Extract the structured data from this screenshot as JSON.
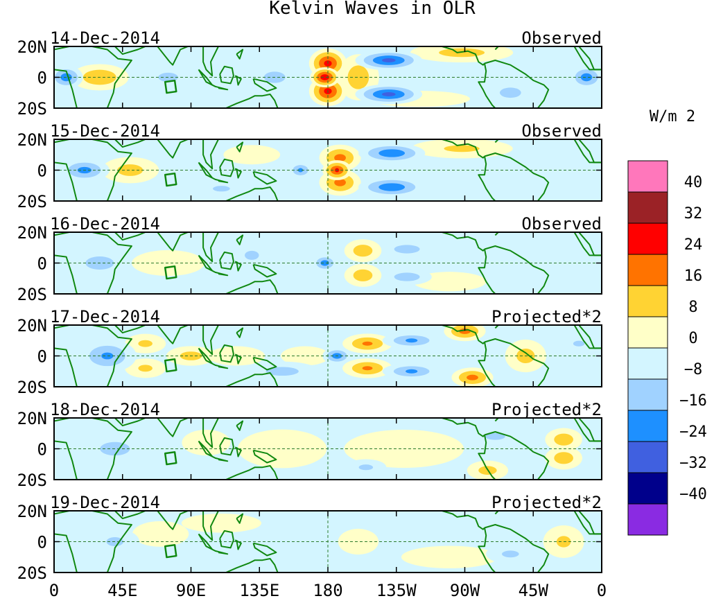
{
  "chart_data": {
    "type": "heatmap",
    "title": "Kelvin Waves in OLR",
    "units": "W/m 2",
    "x_ticks": [
      "0",
      "45E",
      "90E",
      "135E",
      "180",
      "135W",
      "90W",
      "45W",
      "0"
    ],
    "y_ticks": [
      "20N",
      "0",
      "20S"
    ],
    "panels": [
      {
        "date": "14-Dec-2014",
        "kind": "Observed"
      },
      {
        "date": "15-Dec-2014",
        "kind": "Observed"
      },
      {
        "date": "16-Dec-2014",
        "kind": "Observed"
      },
      {
        "date": "17-Dec-2014",
        "kind": "Projected*2"
      },
      {
        "date": "18-Dec-2014",
        "kind": "Projected*2"
      },
      {
        "date": "19-Dec-2014",
        "kind": "Projected*2"
      }
    ],
    "colorbar": {
      "colors": [
        "#ff77bb",
        "#9b2226",
        "#ff0000",
        "#ff7300",
        "#ffd333",
        "#ffffc8",
        "#d3f5ff",
        "#a0d2ff",
        "#1e90ff",
        "#4060e0",
        "#00008b",
        "#8a2be2"
      ],
      "labels": [
        "40",
        "32",
        "24",
        "16",
        "8",
        "0",
        "−8",
        "−16",
        "−24",
        "−32",
        "−40"
      ]
    },
    "features": [
      [
        {
          "lon": 180,
          "lat": 9,
          "v": 26,
          "w": 9,
          "h": 9
        },
        {
          "lon": 180,
          "lat": -9,
          "v": 26,
          "w": 9,
          "h": 9
        },
        {
          "lon": 178,
          "lat": 0,
          "v": 30,
          "w": 7,
          "h": 6
        },
        {
          "lon": 200,
          "lat": 0,
          "v": 12,
          "w": 10,
          "h": 14
        },
        {
          "lon": 220,
          "lat": 11,
          "v": -26,
          "w": 16,
          "h": 6
        },
        {
          "lon": 220,
          "lat": -11,
          "v": -26,
          "w": 16,
          "h": 6
        },
        {
          "lon": 30,
          "lat": 0,
          "v": 14,
          "w": 14,
          "h": 8
        },
        {
          "lon": 8,
          "lat": 0,
          "v": -20,
          "w": 8,
          "h": 7
        },
        {
          "lon": 350,
          "lat": 0,
          "v": -20,
          "w": 8,
          "h": 7
        },
        {
          "lon": 268,
          "lat": 16,
          "v": 10,
          "w": 25,
          "h": 6
        },
        {
          "lon": 240,
          "lat": -14,
          "v": 7,
          "w": 25,
          "h": 5
        },
        {
          "lon": 75,
          "lat": 0,
          "v": -9,
          "w": 12,
          "h": 7
        },
        {
          "lon": 145,
          "lat": 0,
          "v": -8,
          "w": 15,
          "h": 10
        },
        {
          "lon": 300,
          "lat": -10,
          "v": -12,
          "w": 10,
          "h": 6
        }
      ],
      [
        {
          "lon": 188,
          "lat": 8,
          "v": 18,
          "w": 10,
          "h": 8
        },
        {
          "lon": 188,
          "lat": -8,
          "v": 18,
          "w": 10,
          "h": 8
        },
        {
          "lon": 186,
          "lat": 0,
          "v": 24,
          "w": 7,
          "h": 6
        },
        {
          "lon": 222,
          "lat": 11,
          "v": -22,
          "w": 16,
          "h": 6
        },
        {
          "lon": 222,
          "lat": -11,
          "v": -22,
          "w": 16,
          "h": 6
        },
        {
          "lon": 20,
          "lat": 0,
          "v": -18,
          "w": 12,
          "h": 7
        },
        {
          "lon": 50,
          "lat": 0,
          "v": 10,
          "w": 14,
          "h": 8
        },
        {
          "lon": 268,
          "lat": 14,
          "v": 8,
          "w": 25,
          "h": 6
        },
        {
          "lon": 162,
          "lat": 0,
          "v": -16,
          "w": 6,
          "h": 5
        },
        {
          "lon": 130,
          "lat": 10,
          "v": 6,
          "w": 14,
          "h": 6
        },
        {
          "lon": 110,
          "lat": -12,
          "v": -8,
          "w": 12,
          "h": 5
        }
      ],
      [
        {
          "lon": 203,
          "lat": 8,
          "v": 12,
          "w": 9,
          "h": 7
        },
        {
          "lon": 203,
          "lat": -8,
          "v": 12,
          "w": 9,
          "h": 7
        },
        {
          "lon": 178,
          "lat": 0,
          "v": -20,
          "w": 6,
          "h": 5
        },
        {
          "lon": 232,
          "lat": 9,
          "v": -12,
          "w": 12,
          "h": 5
        },
        {
          "lon": 232,
          "lat": -9,
          "v": -12,
          "w": 12,
          "h": 5
        },
        {
          "lon": 30,
          "lat": 0,
          "v": -14,
          "w": 12,
          "h": 7
        },
        {
          "lon": 260,
          "lat": -12,
          "v": 7,
          "w": 18,
          "h": 6
        },
        {
          "lon": 130,
          "lat": 5,
          "v": -8,
          "w": 10,
          "h": 8
        },
        {
          "lon": 75,
          "lat": 0,
          "v": 6,
          "w": 18,
          "h": 8
        },
        {
          "lon": 260,
          "lat": 12,
          "v": -6,
          "w": 16,
          "h": 5
        }
      ],
      [
        {
          "lon": 206,
          "lat": 8,
          "v": 16,
          "w": 12,
          "h": 6
        },
        {
          "lon": 206,
          "lat": -8,
          "v": 16,
          "w": 12,
          "h": 6
        },
        {
          "lon": 186,
          "lat": 0,
          "v": -20,
          "w": 7,
          "h": 5
        },
        {
          "lon": 235,
          "lat": 10,
          "v": -16,
          "w": 14,
          "h": 5
        },
        {
          "lon": 235,
          "lat": -10,
          "v": -16,
          "w": 14,
          "h": 5
        },
        {
          "lon": 270,
          "lat": 16,
          "v": 18,
          "w": 10,
          "h": 6
        },
        {
          "lon": 275,
          "lat": -14,
          "v": 18,
          "w": 10,
          "h": 6
        },
        {
          "lon": 35,
          "lat": 0,
          "v": -16,
          "w": 14,
          "h": 10
        },
        {
          "lon": 90,
          "lat": 0,
          "v": 10,
          "w": 12,
          "h": 6
        },
        {
          "lon": 310,
          "lat": 0,
          "v": 10,
          "w": 10,
          "h": 10
        },
        {
          "lon": 150,
          "lat": -10,
          "v": -10,
          "w": 18,
          "h": 6
        },
        {
          "lon": 60,
          "lat": 8,
          "v": 8,
          "w": 10,
          "h": 6
        },
        {
          "lon": 60,
          "lat": -8,
          "v": 8,
          "w": 10,
          "h": 6
        },
        {
          "lon": 120,
          "lat": 0,
          "v": 6,
          "w": 14,
          "h": 6
        },
        {
          "lon": 345,
          "lat": 8,
          "v": -8,
          "w": 8,
          "h": 5
        },
        {
          "lon": 165,
          "lat": 0,
          "v": 6,
          "w": 12,
          "h": 6
        }
      ],
      [
        {
          "lon": 335,
          "lat": 6,
          "v": 12,
          "w": 9,
          "h": 7
        },
        {
          "lon": 335,
          "lat": -6,
          "v": 12,
          "w": 9,
          "h": 7
        },
        {
          "lon": 285,
          "lat": -14,
          "v": 10,
          "w": 10,
          "h": 6
        },
        {
          "lon": 40,
          "lat": 0,
          "v": -12,
          "w": 14,
          "h": 8
        },
        {
          "lon": 100,
          "lat": 4,
          "v": 6,
          "w": 12,
          "h": 8
        },
        {
          "lon": 150,
          "lat": 0,
          "v": 6,
          "w": 22,
          "h": 12
        },
        {
          "lon": 290,
          "lat": 8,
          "v": -8,
          "w": 14,
          "h": 6
        },
        {
          "lon": 230,
          "lat": 0,
          "v": 4,
          "w": 30,
          "h": 12
        },
        {
          "lon": 205,
          "lat": -12,
          "v": -8,
          "w": 10,
          "h": 5
        }
      ],
      [
        {
          "lon": 335,
          "lat": 0,
          "v": 8,
          "w": 10,
          "h": 10
        },
        {
          "lon": 200,
          "lat": 0,
          "v": 6,
          "w": 10,
          "h": 8
        },
        {
          "lon": 70,
          "lat": 5,
          "v": 5,
          "w": 14,
          "h": 8
        },
        {
          "lon": 40,
          "lat": 0,
          "v": -8,
          "w": 12,
          "h": 8
        },
        {
          "lon": 260,
          "lat": -10,
          "v": 5,
          "w": 24,
          "h": 7
        },
        {
          "lon": 300,
          "lat": -8,
          "v": -8,
          "w": 12,
          "h": 6
        },
        {
          "lon": 150,
          "lat": -8,
          "v": -6,
          "w": 20,
          "h": 6
        },
        {
          "lon": 110,
          "lat": 12,
          "v": 4,
          "w": 20,
          "h": 6
        }
      ]
    ]
  }
}
